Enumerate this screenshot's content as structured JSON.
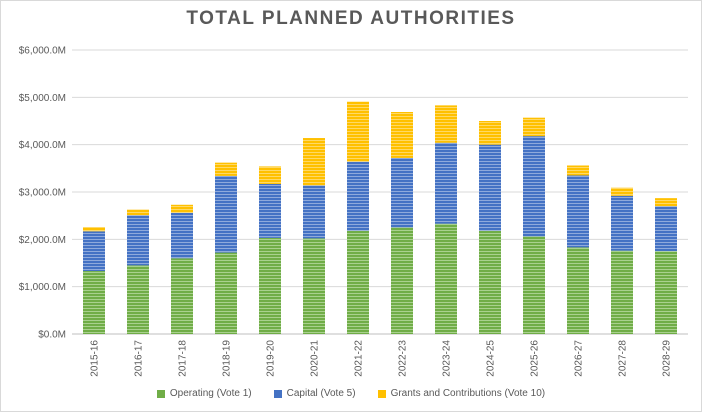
{
  "chart_data": {
    "type": "bar",
    "stacked": true,
    "title": "TOTAL PLANNED AUTHORITIES",
    "xlabel": "",
    "ylabel": "",
    "ylim": [
      0,
      6000
    ],
    "yticks": [
      "$0.0M",
      "$1,000.0M",
      "$2,000.0M",
      "$3,000.0M",
      "$4,000.0M",
      "$5,000.0M",
      "$6,000.0M"
    ],
    "grid": true,
    "legend_position": "bottom",
    "categories": [
      "2015-16",
      "2016-17",
      "2017-18",
      "2018-19",
      "2019-20",
      "2020-21",
      "2021-22",
      "2022-23",
      "2023-24",
      "2024-25",
      "2025-26",
      "2026-27",
      "2027-28",
      "2028-29"
    ],
    "series": [
      {
        "name": "Operating (Vote 1)",
        "color": "#70ad47",
        "values": [
          1330,
          1450,
          1600,
          1720,
          2030,
          2020,
          2180,
          2250,
          2330,
          2180,
          2060,
          1830,
          1760,
          1750
        ]
      },
      {
        "name": "Capital (Vote 5)",
        "color": "#4472c4",
        "values": [
          840,
          1060,
          960,
          1620,
          1140,
          1120,
          1460,
          1470,
          1710,
          1820,
          2120,
          1520,
          1160,
          950
        ]
      },
      {
        "name": "Grants and Contributions (Vote 10)",
        "color": "#ffc000",
        "values": [
          90,
          120,
          170,
          280,
          370,
          1000,
          1270,
          970,
          790,
          500,
          390,
          210,
          170,
          170
        ]
      }
    ]
  }
}
